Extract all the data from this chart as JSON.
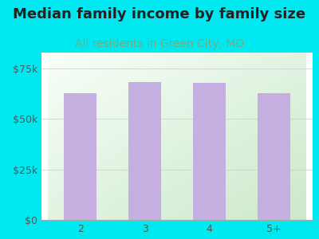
{
  "title": "Median family income by family size",
  "subtitle": "All residents in Green City, MO",
  "categories": [
    "2",
    "3",
    "4",
    "5+"
  ],
  "values": [
    63000,
    68500,
    68000,
    63000
  ],
  "bar_color": "#c5aee0",
  "title_fontsize": 13,
  "subtitle_fontsize": 10,
  "subtitle_color": "#7aaa7a",
  "title_color": "#222222",
  "background_color": "#00e8f0",
  "plot_bg_top_left": "#cce8cc",
  "plot_bg_bottom_right": "#f8fff8",
  "ytick_labels": [
    "$0",
    "$25k",
    "$50k",
    "$75k"
  ],
  "ytick_values": [
    0,
    25000,
    50000,
    75000
  ],
  "ylim": [
    0,
    83000
  ],
  "grid_color": "#cccccc",
  "tick_color": "#555555"
}
